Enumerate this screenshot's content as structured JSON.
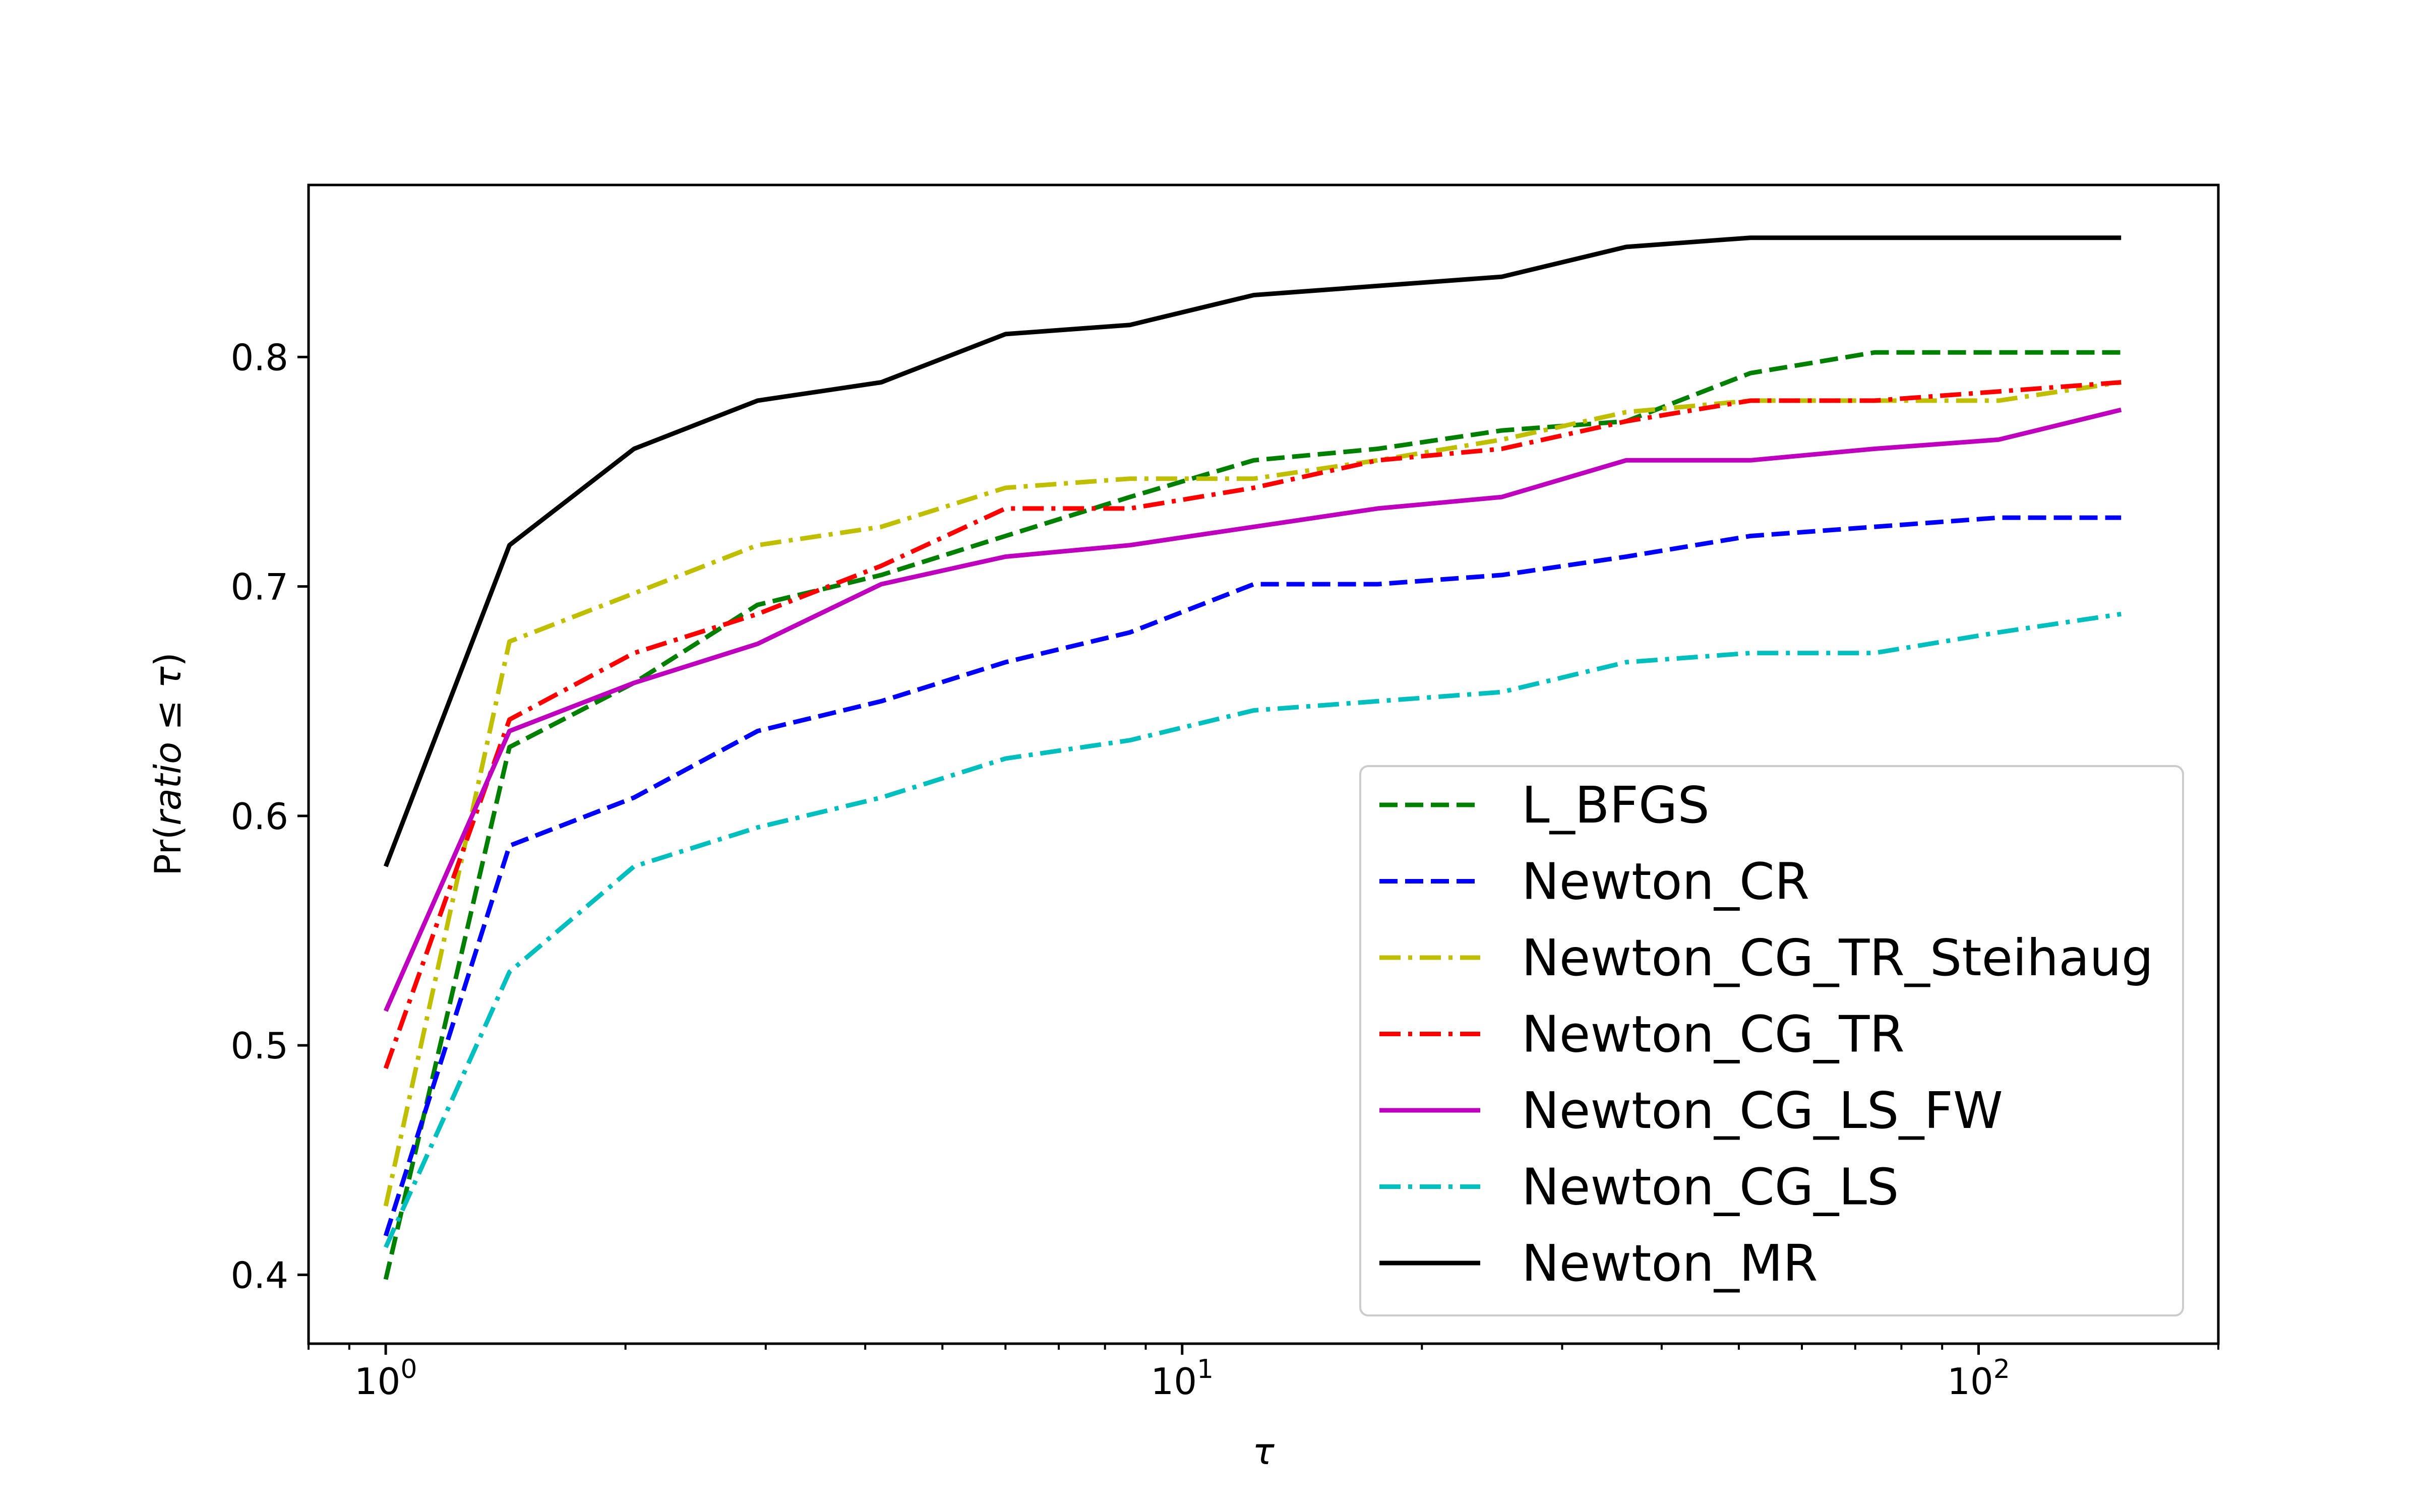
{
  "chart_data": {
    "type": "line",
    "title": "",
    "xlabel": "τ",
    "ylabel_parts": [
      "Pr(",
      "ratio",
      " ≤ ",
      "τ",
      ")"
    ],
    "xscale": "log",
    "xlim": [
      0.8,
      200
    ],
    "ylim": [
      0.37,
      0.875
    ],
    "xticks": [
      {
        "value": 1,
        "base": "10",
        "exp": "0"
      },
      {
        "value": 10,
        "base": "10",
        "exp": "1"
      },
      {
        "value": 100,
        "base": "10",
        "exp": "2"
      }
    ],
    "yticks": [
      {
        "value": 0.4,
        "label": "0.4"
      },
      {
        "value": 0.5,
        "label": "0.5"
      },
      {
        "value": 0.6,
        "label": "0.6"
      },
      {
        "value": 0.7,
        "label": "0.7"
      },
      {
        "value": 0.8,
        "label": "0.8"
      }
    ],
    "legend_position": "lower-right",
    "x": [
      1.0,
      1.43,
      2.05,
      2.93,
      4.19,
      6.0,
      8.6,
      12.3,
      17.6,
      25.2,
      36.1,
      51.7,
      74.0,
      106.0,
      151.0
    ],
    "series": [
      {
        "name": "L_BFGS",
        "color": "#008000",
        "dash": "dashed",
        "values": [
          0.398,
          0.63,
          0.658,
          0.692,
          0.705,
          0.722,
          0.739,
          0.755,
          0.76,
          0.768,
          0.772,
          0.793,
          0.802,
          0.802,
          0.802
        ]
      },
      {
        "name": "Newton_CR",
        "color": "#0000ff",
        "dash": "dashed",
        "values": [
          0.417,
          0.587,
          0.608,
          0.637,
          0.65,
          0.667,
          0.68,
          0.701,
          0.701,
          0.705,
          0.713,
          0.722,
          0.726,
          0.73,
          0.73
        ]
      },
      {
        "name": "Newton_CG_TR_Steihaug",
        "color": "#bfbf00",
        "dash": "dashdot",
        "values": [
          0.43,
          0.676,
          0.697,
          0.718,
          0.726,
          0.743,
          0.747,
          0.747,
          0.755,
          0.764,
          0.776,
          0.781,
          0.781,
          0.781,
          0.789
        ]
      },
      {
        "name": "Newton_CG_TR",
        "color": "#ff0000",
        "dash": "dashdot",
        "values": [
          0.49,
          0.642,
          0.671,
          0.688,
          0.709,
          0.734,
          0.734,
          0.743,
          0.755,
          0.76,
          0.772,
          0.781,
          0.781,
          0.785,
          0.789
        ]
      },
      {
        "name": "Newton_CG_LS_FW",
        "color": "#bf00bf",
        "dash": "solid",
        "values": [
          0.515,
          0.637,
          0.658,
          0.675,
          0.701,
          0.713,
          0.718,
          0.726,
          0.734,
          0.739,
          0.755,
          0.755,
          0.76,
          0.764,
          0.777
        ]
      },
      {
        "name": "Newton_CG_LS",
        "color": "#00bfbf",
        "dash": "dashdot",
        "values": [
          0.412,
          0.532,
          0.578,
          0.595,
          0.608,
          0.625,
          0.633,
          0.646,
          0.65,
          0.654,
          0.667,
          0.671,
          0.671,
          0.68,
          0.688
        ]
      },
      {
        "name": "Newton_MR",
        "color": "#000000",
        "dash": "solid",
        "values": [
          0.578,
          0.718,
          0.76,
          0.781,
          0.789,
          0.81,
          0.814,
          0.827,
          0.831,
          0.835,
          0.848,
          0.852,
          0.852,
          0.852,
          0.852
        ]
      }
    ]
  }
}
